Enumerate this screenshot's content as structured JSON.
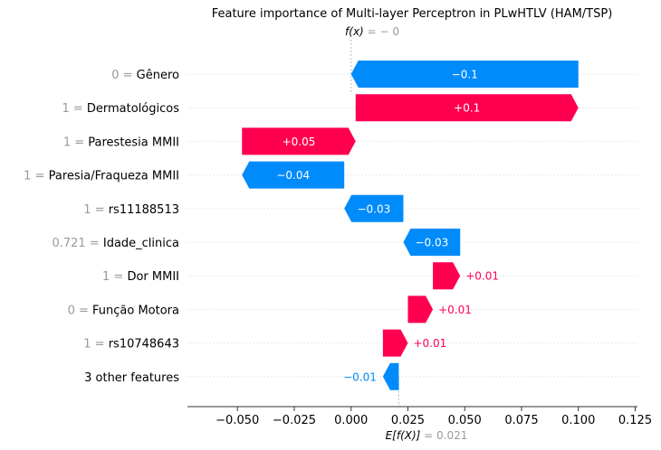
{
  "chart_data": {
    "type": "waterfall",
    "title": "Feature importance of Multi-layer Perceptron in PLwHTLV (HAM/TSP)",
    "fx_label": "f(x) = − 0",
    "fx_symbol": "f(x)",
    "fx_value": "= − 0",
    "efx_symbol": "E[f(X)]",
    "efx_value": "= 0.021",
    "base_value": 0.021,
    "final_value": 0.0,
    "xlim": [
      -0.072,
      0.126
    ],
    "x_ticks": [
      -0.05,
      -0.025,
      0.0,
      0.025,
      0.05,
      0.075,
      0.1,
      0.125
    ],
    "x_tick_labels": [
      "−0.050",
      "−0.025",
      "0.000",
      "0.025",
      "0.050",
      "0.075",
      "0.100",
      "0.125"
    ],
    "colors": {
      "positive": "#ff0051",
      "negative": "#008bfb",
      "grid": "#e8e8e8",
      "axis": "#333333",
      "muted": "#9a9a9a"
    },
    "rows": [
      {
        "value_text": "0",
        "feature": "Gênero",
        "start": 0.0,
        "end": 0.1,
        "label": "−0.1",
        "sign": "negative"
      },
      {
        "value_text": "1",
        "feature": "Dermatológicos",
        "start": 0.002,
        "end": 0.1,
        "label": "+0.1",
        "sign": "positive"
      },
      {
        "value_text": "1",
        "feature": "Parestesia MMII",
        "start": -0.048,
        "end": 0.002,
        "label": "+0.05",
        "sign": "positive"
      },
      {
        "value_text": "1",
        "feature": "Paresia/Fraqueza MMII",
        "start": -0.048,
        "end": -0.003,
        "label": "−0.04",
        "sign": "negative"
      },
      {
        "value_text": "1",
        "feature": "rs11188513",
        "start": -0.003,
        "end": 0.023,
        "label": "−0.03",
        "sign": "negative"
      },
      {
        "value_text": "0.721",
        "feature": "Idade_clinica",
        "start": 0.023,
        "end": 0.048,
        "label": "−0.03",
        "sign": "negative"
      },
      {
        "value_text": "1",
        "feature": "Dor MMII",
        "start": 0.036,
        "end": 0.048,
        "label": "+0.01",
        "sign": "positive"
      },
      {
        "value_text": "0",
        "feature": "Função Motora",
        "start": 0.025,
        "end": 0.036,
        "label": "+0.01",
        "sign": "positive"
      },
      {
        "value_text": "1",
        "feature": "rs10748643",
        "start": 0.014,
        "end": 0.025,
        "label": "+0.01",
        "sign": "positive"
      },
      {
        "value_text": "",
        "feature": "3 other features",
        "start": 0.014,
        "end": 0.021,
        "label": "−0.01",
        "sign": "negative"
      }
    ]
  }
}
